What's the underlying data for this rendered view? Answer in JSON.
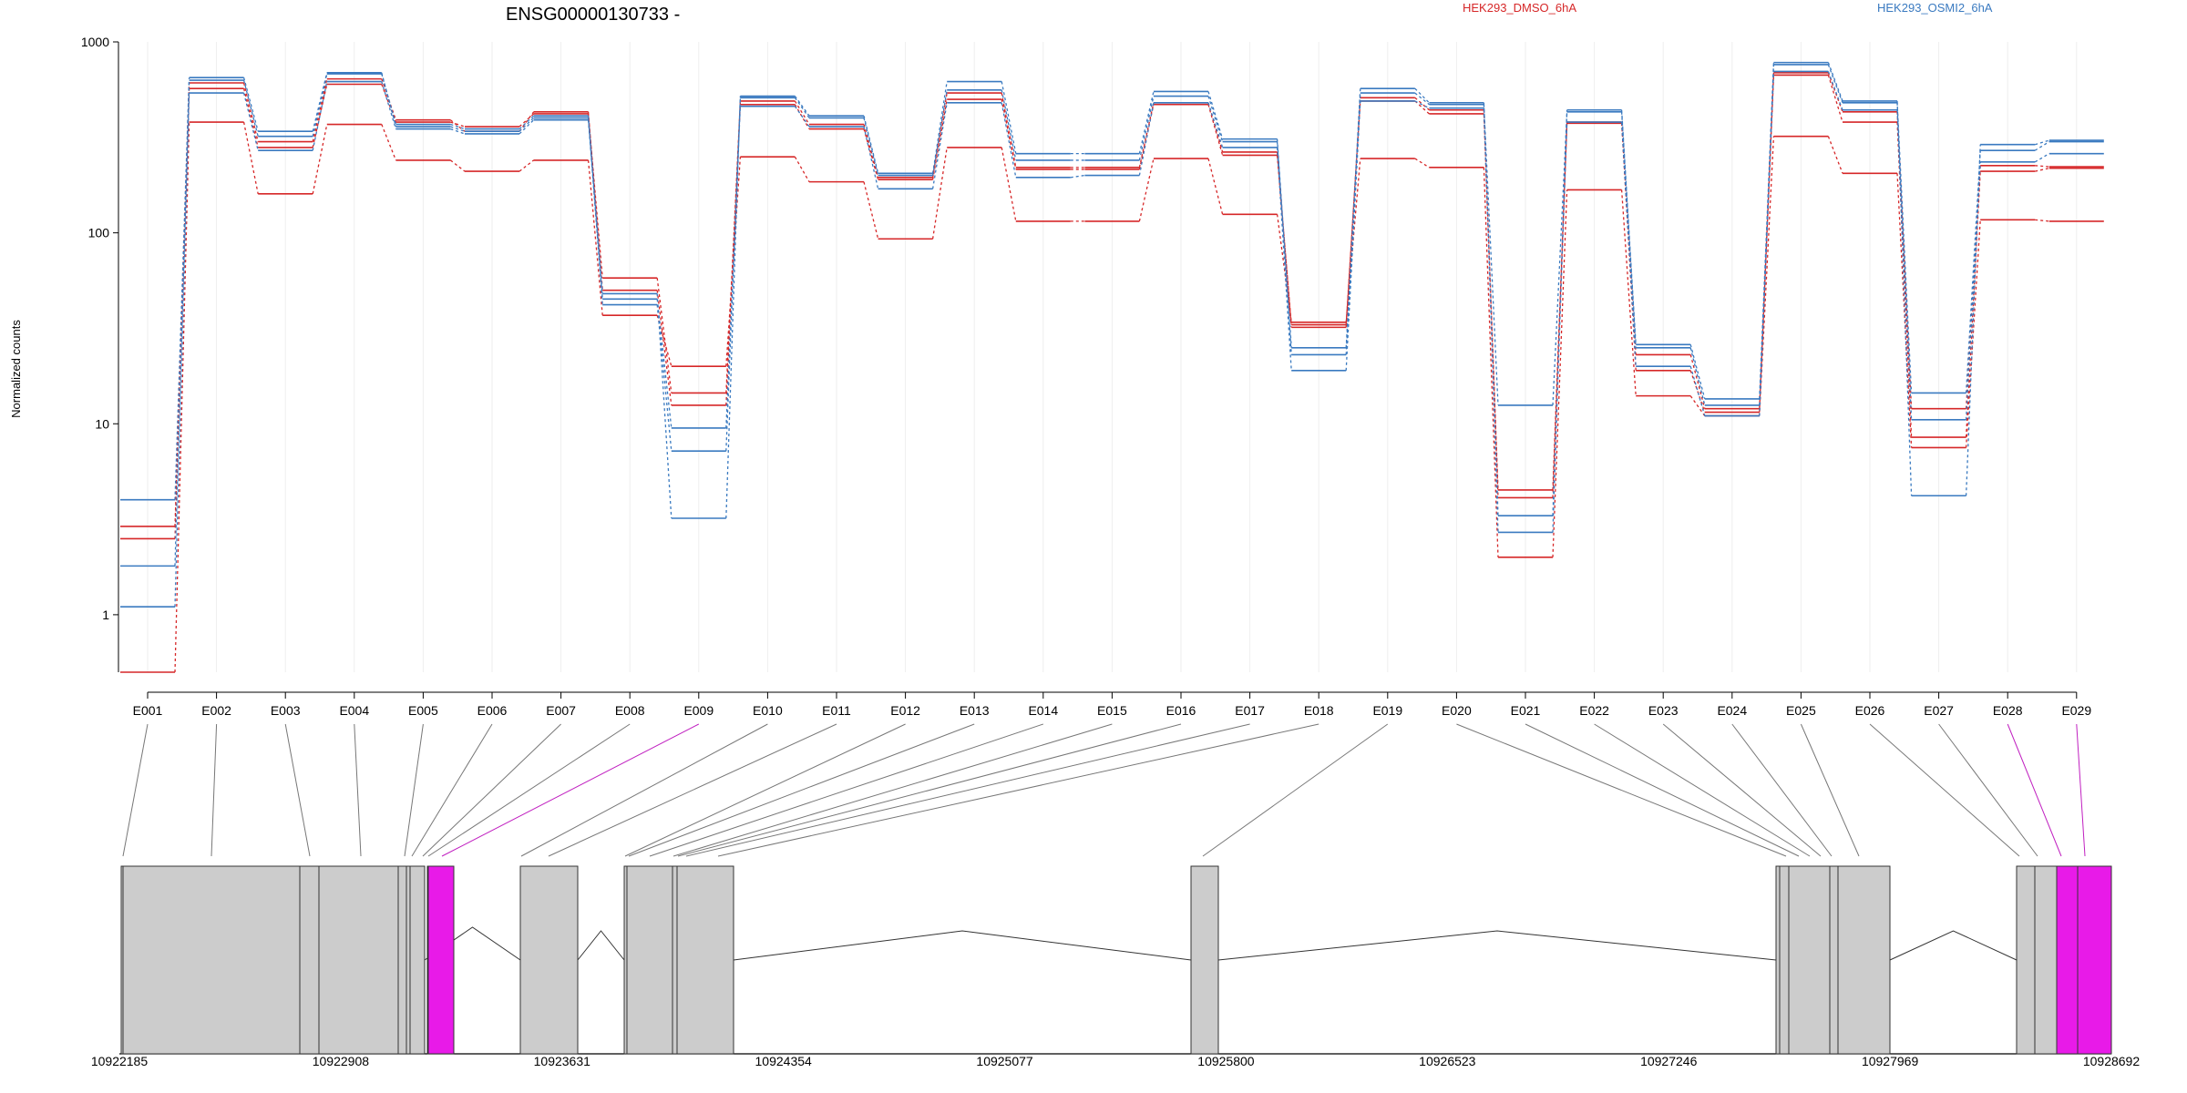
{
  "chart_data": {
    "type": "line",
    "title": "ENSG00000130733 -",
    "ylabel": "Normalized counts",
    "yscale": "log",
    "ylim": [
      0.5,
      1000
    ],
    "yticks": [
      1,
      10,
      100,
      1000
    ],
    "ytick_labels": [
      "1",
      "10",
      "100",
      "1000"
    ],
    "grid": "vertical",
    "legend": [
      {
        "name": "HEK293_DMSO_6hA",
        "color": "#d62728"
      },
      {
        "name": "HEK293_OSMI2_6hA",
        "color": "#3a7ac0"
      }
    ],
    "categories": [
      "E001",
      "E002",
      "E003",
      "E004",
      "E005",
      "E006",
      "E007",
      "E008",
      "E009",
      "E010",
      "E011",
      "E012",
      "E013",
      "E014",
      "E015",
      "E016",
      "E017",
      "E018",
      "E019",
      "E020",
      "E021",
      "E022",
      "E023",
      "E024",
      "E025",
      "E026",
      "E027",
      "E028",
      "E029"
    ],
    "series": [
      {
        "group": "HEK293_DMSO_6hA",
        "color": "#d62728",
        "values": [
          0.5,
          380,
          160,
          370,
          240,
          210,
          240,
          37,
          20,
          250,
          185,
          93,
          280,
          115,
          115,
          245,
          125,
          34,
          245,
          220,
          2,
          168,
          14,
          11,
          320,
          205,
          7.5,
          117,
          115
        ]
      },
      {
        "group": "HEK293_DMSO_6hA",
        "color": "#d62728",
        "values": [
          2.5,
          570,
          280,
          600,
          380,
          360,
          420,
          58,
          14.5,
          470,
          350,
          190,
          500,
          215,
          215,
          470,
          255,
          33,
          490,
          420,
          4.5,
          380,
          19,
          11.5,
          670,
          380,
          8.5,
          210,
          218
        ]
      },
      {
        "group": "HEK293_DMSO_6hA",
        "color": "#d62728",
        "values": [
          2.9,
          610,
          300,
          640,
          390,
          340,
          430,
          50,
          12.5,
          490,
          370,
          195,
          540,
          220,
          220,
          480,
          265,
          32,
          510,
          440,
          4.1,
          375,
          23,
          12,
          690,
          430,
          12,
          225,
          222
        ]
      },
      {
        "group": "HEK293_OSMI2_6hA",
        "color": "#3a7ac0",
        "values": [
          1.1,
          540,
          270,
          620,
          350,
          330,
          390,
          45,
          9.5,
          460,
          360,
          170,
          480,
          195,
          200,
          480,
          280,
          19,
          490,
          450,
          3.3,
          380,
          20,
          11,
          700,
          440,
          10.5,
          235,
          260
        ]
      },
      {
        "group": "HEK293_OSMI2_6hA",
        "color": "#3a7ac0",
        "values": [
          1.8,
          630,
          320,
          680,
          370,
          350,
          410,
          42,
          7.2,
          510,
          400,
          200,
          560,
          240,
          240,
          520,
          300,
          23,
          540,
          470,
          12.5,
          430,
          25,
          12.5,
          760,
          480,
          14.5,
          270,
          300
        ]
      },
      {
        "group": "HEK293_OSMI2_6hA",
        "color": "#3a7ac0",
        "values": [
          4,
          650,
          340,
          690,
          360,
          340,
          400,
          48,
          3.2,
          520,
          410,
          205,
          620,
          260,
          260,
          550,
          310,
          25,
          570,
          480,
          2.7,
          440,
          26,
          13.5,
          780,
          490,
          4.2,
          290,
          305
        ]
      }
    ],
    "gene_model": {
      "coordinate_labels": [
        "10922185",
        "10922908",
        "10923631",
        "10924354",
        "10925077",
        "10925800",
        "10926523",
        "10927246",
        "10927969",
        "10928692"
      ],
      "highlight_color": "#e81ae8",
      "highlighted_exons": [
        "E009",
        "E028",
        "E029"
      ]
    }
  }
}
